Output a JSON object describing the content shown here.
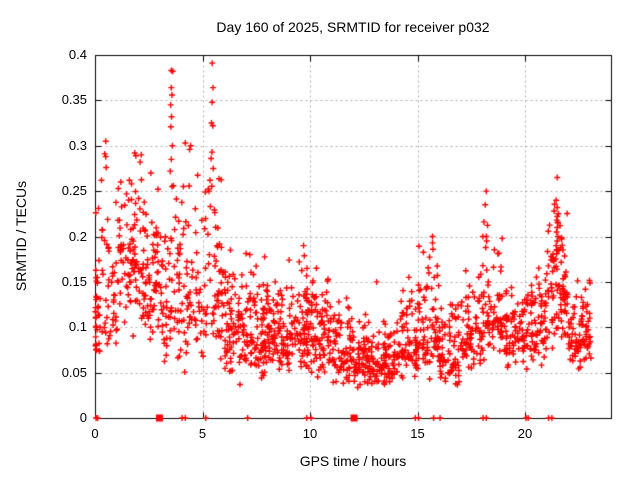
{
  "title": "Day 160 of 2025, SRMTID for receiver p032",
  "chart_data": {
    "type": "scatter",
    "title": "Day 160 of 2025, SRMTID for receiver p032",
    "xlabel": "GPS time / hours",
    "ylabel": "SRMTID / TECUs",
    "xlim": [
      0,
      24
    ],
    "ylim": [
      0,
      0.4
    ],
    "xticks": [
      0,
      5,
      10,
      15,
      20
    ],
    "xtick_labels": [
      "0",
      "5",
      "10",
      "15",
      "20"
    ],
    "yticks": [
      0,
      0.05,
      0.1,
      0.15,
      0.2,
      0.25,
      0.3,
      0.35,
      0.4
    ],
    "ytick_labels": [
      "0",
      "0.05",
      "0.1",
      "0.15",
      "0.2",
      "0.25",
      "0.3",
      "0.35",
      "0.4"
    ],
    "grid": true,
    "legend": false,
    "marker": "plus",
    "marker_color": "#ff0000",
    "grid_color": "#b0b0b0",
    "axis_color": "#000000",
    "seed": 97,
    "high_points": [
      [
        3.55,
        0.383
      ],
      [
        3.62,
        0.382
      ],
      [
        3.55,
        0.364
      ],
      [
        3.58,
        0.356
      ],
      [
        3.52,
        0.345
      ],
      [
        3.56,
        0.332
      ],
      [
        3.53,
        0.321
      ],
      [
        3.6,
        0.3
      ],
      [
        3.55,
        0.285
      ],
      [
        3.5,
        0.272
      ],
      [
        3.58,
        0.255
      ],
      [
        5.45,
        0.391
      ],
      [
        5.49,
        0.364
      ],
      [
        5.45,
        0.348
      ],
      [
        5.42,
        0.325
      ],
      [
        5.48,
        0.322
      ],
      [
        5.44,
        0.293
      ],
      [
        5.4,
        0.286
      ],
      [
        5.5,
        0.275
      ],
      [
        5.35,
        0.262
      ],
      [
        5.3,
        0.25
      ],
      [
        4.2,
        0.303
      ],
      [
        4.45,
        0.3
      ],
      [
        4.4,
        0.296
      ],
      [
        0.5,
        0.305
      ],
      [
        0.45,
        0.291
      ],
      [
        0.5,
        0.288
      ],
      [
        0.52,
        0.276
      ],
      [
        0.3,
        0.262
      ],
      [
        1.2,
        0.26
      ],
      [
        1.85,
        0.292
      ],
      [
        1.9,
        0.289
      ],
      [
        1.6,
        0.262
      ],
      [
        1.7,
        0.258
      ],
      [
        2.15,
        0.29
      ],
      [
        2.1,
        0.282
      ],
      [
        2.6,
        0.27
      ],
      [
        6.3,
        0.185
      ],
      [
        7.2,
        0.18
      ],
      [
        9.7,
        0.19
      ],
      [
        9.5,
        0.172
      ],
      [
        10.3,
        0.165
      ],
      [
        13.1,
        0.15
      ],
      [
        14.6,
        0.155
      ],
      [
        15.7,
        0.2
      ],
      [
        15.7,
        0.193
      ],
      [
        15.72,
        0.186
      ],
      [
        18.2,
        0.25
      ],
      [
        18.15,
        0.235
      ],
      [
        18.2,
        0.2
      ],
      [
        18.22,
        0.195
      ],
      [
        21.5,
        0.265
      ],
      [
        21.45,
        0.24
      ],
      [
        21.5,
        0.232
      ],
      [
        21.55,
        0.225
      ],
      [
        21.5,
        0.222
      ],
      [
        21.48,
        0.218
      ],
      [
        21.52,
        0.215
      ],
      [
        21.5,
        0.21
      ],
      [
        21.47,
        0.205
      ],
      [
        21.53,
        0.2
      ],
      [
        21.5,
        0.195
      ],
      [
        21.45,
        0.19
      ]
    ],
    "zero_points": [
      0.05,
      0.12,
      4.05,
      4.2,
      5.15,
      7.1,
      9.85,
      10.05,
      14.9,
      15.05,
      15.75,
      16.05,
      18.05,
      18.2,
      20.05,
      20.15,
      21.1,
      21.25
    ],
    "zero_blobs": [
      3.0,
      12.05
    ],
    "clusters": [
      {
        "x0": 0.0,
        "x1": 0.25,
        "n": 20,
        "ylo": 0.065,
        "yhi": 0.19,
        "peak": 0.09
      },
      {
        "x0": 0.0,
        "x1": 1.0,
        "n": 55,
        "ylo": 0.07,
        "yhi": 0.25,
        "peak": 0.13
      },
      {
        "x0": 1.0,
        "x1": 2.0,
        "n": 75,
        "ylo": 0.08,
        "yhi": 0.26,
        "peak": 0.16
      },
      {
        "x0": 2.0,
        "x1": 3.0,
        "n": 85,
        "ylo": 0.07,
        "yhi": 0.28,
        "peak": 0.15
      },
      {
        "x0": 3.0,
        "x1": 4.0,
        "n": 70,
        "ylo": 0.05,
        "yhi": 0.26,
        "peak": 0.12
      },
      {
        "x0": 4.0,
        "x1": 5.0,
        "n": 60,
        "ylo": 0.035,
        "yhi": 0.28,
        "peak": 0.13
      },
      {
        "x0": 5.0,
        "x1": 6.0,
        "n": 65,
        "ylo": 0.05,
        "yhi": 0.3,
        "peak": 0.13
      },
      {
        "x0": 6.0,
        "x1": 7.0,
        "n": 80,
        "ylo": 0.03,
        "yhi": 0.18,
        "peak": 0.1
      },
      {
        "x0": 7.0,
        "x1": 8.0,
        "n": 90,
        "ylo": 0.04,
        "yhi": 0.19,
        "peak": 0.085
      },
      {
        "x0": 8.0,
        "x1": 9.0,
        "n": 85,
        "ylo": 0.05,
        "yhi": 0.16,
        "peak": 0.09
      },
      {
        "x0": 9.0,
        "x1": 10.0,
        "n": 85,
        "ylo": 0.04,
        "yhi": 0.19,
        "peak": 0.095
      },
      {
        "x0": 10.0,
        "x1": 11.0,
        "n": 85,
        "ylo": 0.04,
        "yhi": 0.165,
        "peak": 0.09
      },
      {
        "x0": 11.0,
        "x1": 12.0,
        "n": 75,
        "ylo": 0.035,
        "yhi": 0.14,
        "peak": 0.075
      },
      {
        "x0": 12.0,
        "x1": 13.0,
        "n": 80,
        "ylo": 0.03,
        "yhi": 0.12,
        "peak": 0.06
      },
      {
        "x0": 13.0,
        "x1": 14.0,
        "n": 75,
        "ylo": 0.035,
        "yhi": 0.115,
        "peak": 0.06
      },
      {
        "x0": 14.0,
        "x1": 15.0,
        "n": 75,
        "ylo": 0.04,
        "yhi": 0.16,
        "peak": 0.075
      },
      {
        "x0": 15.0,
        "x1": 16.0,
        "n": 80,
        "ylo": 0.04,
        "yhi": 0.2,
        "peak": 0.09
      },
      {
        "x0": 16.0,
        "x1": 17.0,
        "n": 75,
        "ylo": 0.035,
        "yhi": 0.15,
        "peak": 0.065
      },
      {
        "x0": 17.0,
        "x1": 18.0,
        "n": 70,
        "ylo": 0.05,
        "yhi": 0.17,
        "peak": 0.09
      },
      {
        "x0": 18.0,
        "x1": 19.0,
        "n": 75,
        "ylo": 0.06,
        "yhi": 0.22,
        "peak": 0.11
      },
      {
        "x0": 19.0,
        "x1": 20.0,
        "n": 70,
        "ylo": 0.05,
        "yhi": 0.15,
        "peak": 0.09
      },
      {
        "x0": 20.0,
        "x1": 21.0,
        "n": 75,
        "ylo": 0.05,
        "yhi": 0.17,
        "peak": 0.1
      },
      {
        "x0": 21.0,
        "x1": 22.0,
        "n": 90,
        "ylo": 0.07,
        "yhi": 0.25,
        "peak": 0.14
      },
      {
        "x0": 22.0,
        "x1": 23.1,
        "n": 85,
        "ylo": 0.05,
        "yhi": 0.16,
        "peak": 0.085
      }
    ]
  }
}
